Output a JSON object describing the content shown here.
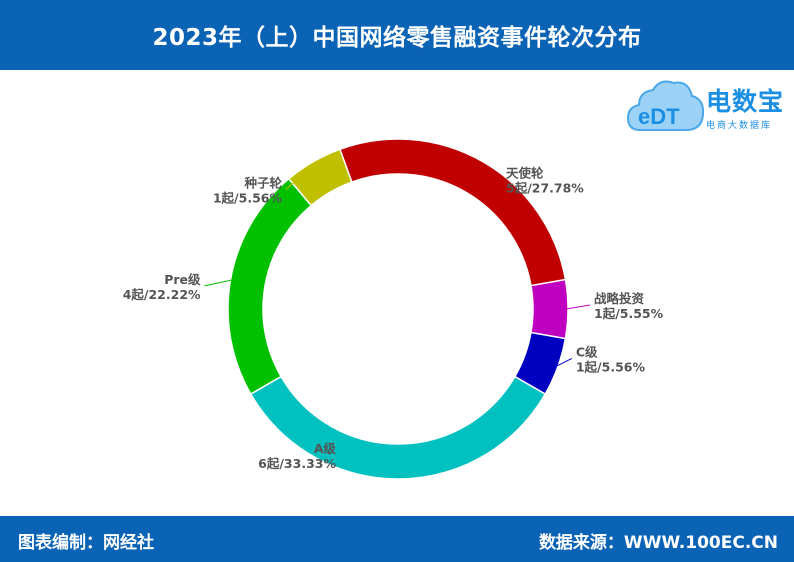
{
  "header": {
    "title": "2023年（上）中国网络零售融资事件轮次分布"
  },
  "logo": {
    "name": "电数宝",
    "subtitle": "电商大数据库",
    "mark": "eDT"
  },
  "footer": {
    "left": "图表编制：网经社",
    "right": "数据来源：WWW.100EC.CN"
  },
  "colors": {
    "header_bg": "#0a63b5",
    "A级": "#00c0c0",
    "C级": "#0000c0",
    "战略投资": "#c000c0",
    "天使轮": "#c00000",
    "种子轮": "#c0c000",
    "Pre级": "#00c000"
  },
  "chart_data": {
    "type": "pie",
    "donut": true,
    "title": "2023年（上）中国网络零售融资事件轮次分布",
    "categories": [
      "A级",
      "C级",
      "战略投资",
      "天使轮",
      "种子轮",
      "Pre级"
    ],
    "values": [
      6,
      1,
      1,
      5,
      1,
      4
    ],
    "percents": [
      "33.33%",
      "5.56%",
      "5.55%",
      "27.78%",
      "5.56%",
      "22.22%"
    ],
    "labels": [
      {
        "name": "A级",
        "value": "6起/33.33%"
      },
      {
        "name": "C级",
        "value": "1起/5.56%"
      },
      {
        "name": "战略投资",
        "value": "1起/5.55%"
      },
      {
        "name": "天使轮",
        "value": "5起/27.78%"
      },
      {
        "name": "种子轮",
        "value": "1起/5.56%"
      },
      {
        "name": "Pre级",
        "value": "4起/22.22%"
      }
    ]
  }
}
